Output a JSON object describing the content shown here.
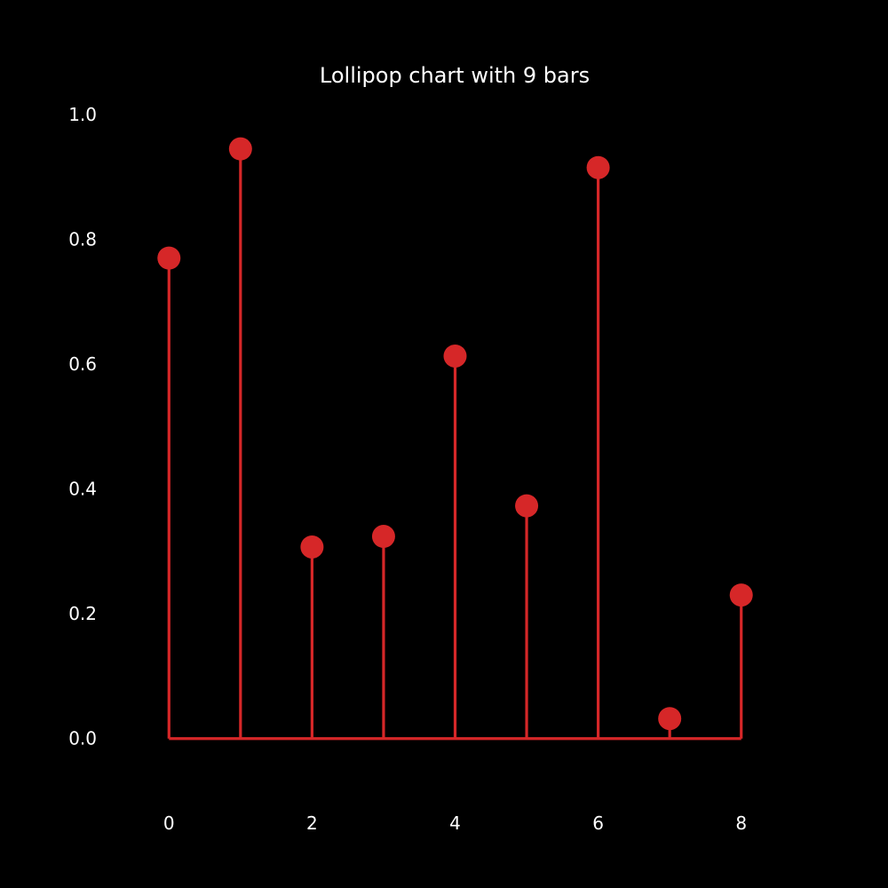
{
  "chart_data": {
    "type": "lollipop",
    "title": "Lollipop chart with 9 bars",
    "xlabel": "",
    "ylabel": "",
    "x": [
      0,
      1,
      2,
      3,
      4,
      5,
      6,
      7,
      8
    ],
    "values": [
      0.77,
      0.945,
      0.307,
      0.324,
      0.613,
      0.373,
      0.915,
      0.032,
      0.23
    ],
    "xlim": [
      -0.5,
      8.5
    ],
    "ylim": [
      -0.1,
      1.0
    ],
    "x_ticks": [
      0,
      2,
      4,
      6,
      8
    ],
    "x_tick_labels": [
      "0",
      "2",
      "4",
      "6",
      "8"
    ],
    "y_ticks": [
      0.0,
      0.2,
      0.4,
      0.6,
      0.8,
      1.0
    ],
    "y_tick_labels": [
      "0.0",
      "0.2",
      "0.4",
      "0.6",
      "0.8",
      "1.0"
    ],
    "baseline": 0.0,
    "grid": false,
    "colors": {
      "background": "#000000",
      "marker": "#d62728",
      "stem": "#d62728",
      "text": "#ffffff"
    }
  }
}
